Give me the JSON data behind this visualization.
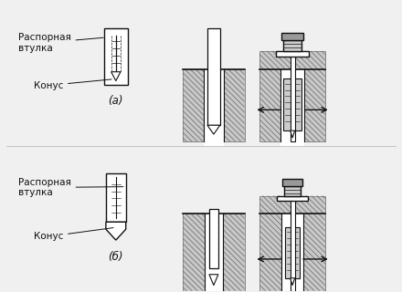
{
  "bg_color": "#f0f0f0",
  "white": "#ffffff",
  "lc": "#111111",
  "gray_light": "#cccccc",
  "gray_med": "#999999",
  "gray_dark": "#666666",
  "hatch_bg": "#c8c8c8",
  "label_a": "(а)",
  "label_b": "(б)",
  "text_raspornya": "Распорная\nвтулка",
  "text_konus": "Конус",
  "fs_label": 8.5,
  "fs_text": 7.5
}
